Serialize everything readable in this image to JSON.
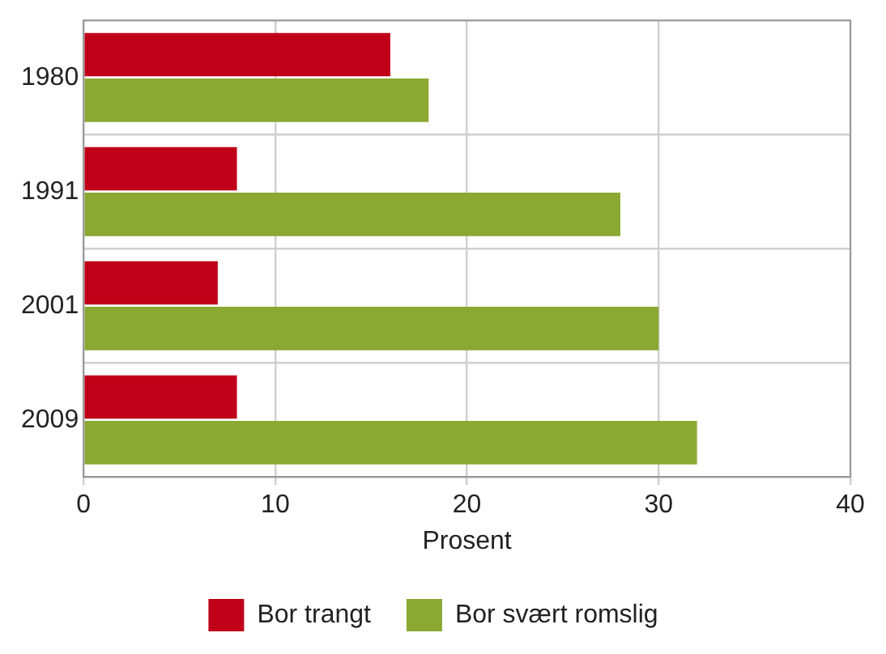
{
  "chart_data": {
    "type": "bar",
    "orientation": "horizontal",
    "categories": [
      "1980",
      "1991",
      "2001",
      "2009"
    ],
    "series": [
      {
        "name": "Bor trangt",
        "color": "#c00018",
        "values": [
          16,
          8,
          7,
          8
        ]
      },
      {
        "name": "Bor svært romslig",
        "color": "#8aa832",
        "values": [
          18,
          28,
          30,
          32
        ]
      }
    ],
    "xlabel": "Prosent",
    "xlim": [
      0,
      40
    ],
    "xticks": [
      0,
      10,
      20,
      30,
      40
    ],
    "grid": true,
    "legend": "bottom"
  }
}
